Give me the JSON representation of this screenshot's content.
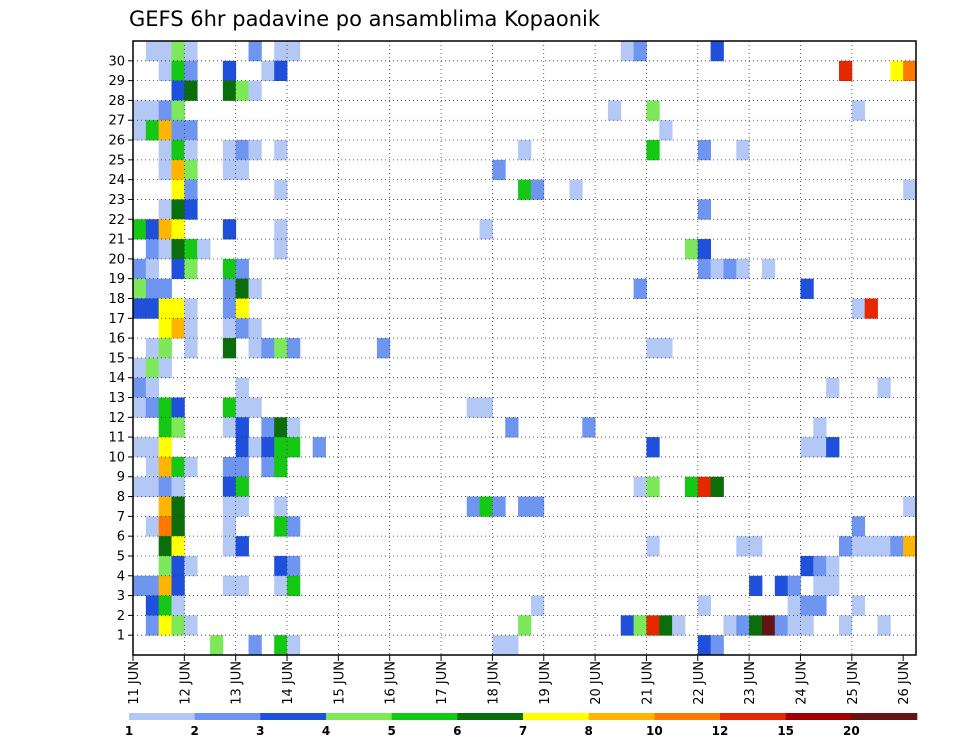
{
  "chart_data": {
    "type": "heatmap",
    "title": "GEFS 6hr padavine po ansamblima Kopaonik",
    "xlabel": "",
    "ylabel": "",
    "y_categories": [
      1,
      2,
      3,
      4,
      5,
      6,
      7,
      8,
      9,
      10,
      11,
      12,
      13,
      14,
      15,
      16,
      17,
      18,
      19,
      20,
      21,
      22,
      23,
      24,
      25,
      26,
      27,
      28,
      29,
      30
    ],
    "x_tick_labels": [
      "11 JUN",
      "12 JUN",
      "13 JUN",
      "14 JUN",
      "15 JUN",
      "16 JUN",
      "17 JUN",
      "18 JUN",
      "19 JUN",
      "20 JUN",
      "21 JUN",
      "22 JUN",
      "23 JUN",
      "24 JUN",
      "25 JUN",
      "26 JUN"
    ],
    "x_unit": "6-hour step",
    "x_steps": 61,
    "grid": true,
    "legend": "bottom",
    "colorbar": {
      "labels": [
        "1",
        "2",
        "3",
        "4",
        "5",
        "6",
        "7",
        "8",
        "10",
        "12",
        "15",
        "20"
      ],
      "colors": [
        "#b4c8f5",
        "#6e96f0",
        "#1e50dc",
        "#7de85a",
        "#14c814",
        "#0a6e0a",
        "#ffff00",
        "#ffb400",
        "#ff7800",
        "#e62800",
        "#a00000",
        "#641414"
      ]
    },
    "cells": [
      {
        "m": 30,
        "t": 1,
        "v": 1
      },
      {
        "m": 30,
        "t": 2,
        "v": 1
      },
      {
        "m": 30,
        "t": 3,
        "v": 4
      },
      {
        "m": 30,
        "t": 4,
        "v": 1
      },
      {
        "m": 30,
        "t": 9,
        "v": 2
      },
      {
        "m": 30,
        "t": 11,
        "v": 1
      },
      {
        "m": 30,
        "t": 12,
        "v": 1
      },
      {
        "m": 30,
        "t": 38,
        "v": 1
      },
      {
        "m": 30,
        "t": 39,
        "v": 2
      },
      {
        "m": 30,
        "t": 45,
        "v": 3
      },
      {
        "m": 29,
        "t": 2,
        "v": 1
      },
      {
        "m": 29,
        "t": 3,
        "v": 5
      },
      {
        "m": 29,
        "t": 4,
        "v": 2
      },
      {
        "m": 29,
        "t": 7,
        "v": 3
      },
      {
        "m": 29,
        "t": 10,
        "v": 1
      },
      {
        "m": 29,
        "t": 11,
        "v": 3
      },
      {
        "m": 29,
        "t": 55,
        "v": 10
      },
      {
        "m": 29,
        "t": 59,
        "v": 7
      },
      {
        "m": 29,
        "t": 60,
        "v": 9
      },
      {
        "m": 28,
        "t": 3,
        "v": 3
      },
      {
        "m": 28,
        "t": 4,
        "v": 6
      },
      {
        "m": 28,
        "t": 7,
        "v": 6
      },
      {
        "m": 28,
        "t": 8,
        "v": 4
      },
      {
        "m": 28,
        "t": 9,
        "v": 1
      },
      {
        "m": 27,
        "t": 0,
        "v": 1
      },
      {
        "m": 27,
        "t": 1,
        "v": 1
      },
      {
        "m": 27,
        "t": 2,
        "v": 2
      },
      {
        "m": 27,
        "t": 3,
        "v": 4
      },
      {
        "m": 27,
        "t": 37,
        "v": 1
      },
      {
        "m": 27,
        "t": 40,
        "v": 4
      },
      {
        "m": 27,
        "t": 56,
        "v": 1
      },
      {
        "m": 26,
        "t": 0,
        "v": 1
      },
      {
        "m": 26,
        "t": 1,
        "v": 5
      },
      {
        "m": 26,
        "t": 2,
        "v": 8
      },
      {
        "m": 26,
        "t": 3,
        "v": 2
      },
      {
        "m": 26,
        "t": 4,
        "v": 2
      },
      {
        "m": 26,
        "t": 41,
        "v": 1
      },
      {
        "m": 25,
        "t": 2,
        "v": 1
      },
      {
        "m": 25,
        "t": 3,
        "v": 5
      },
      {
        "m": 25,
        "t": 4,
        "v": 1
      },
      {
        "m": 25,
        "t": 7,
        "v": 1
      },
      {
        "m": 25,
        "t": 8,
        "v": 2
      },
      {
        "m": 25,
        "t": 9,
        "v": 1
      },
      {
        "m": 25,
        "t": 11,
        "v": 1
      },
      {
        "m": 25,
        "t": 30,
        "v": 1
      },
      {
        "m": 25,
        "t": 40,
        "v": 5
      },
      {
        "m": 25,
        "t": 44,
        "v": 2
      },
      {
        "m": 25,
        "t": 47,
        "v": 1
      },
      {
        "m": 24,
        "t": 2,
        "v": 1
      },
      {
        "m": 24,
        "t": 3,
        "v": 8
      },
      {
        "m": 24,
        "t": 4,
        "v": 4
      },
      {
        "m": 24,
        "t": 7,
        "v": 1
      },
      {
        "m": 24,
        "t": 8,
        "v": 1
      },
      {
        "m": 24,
        "t": 28,
        "v": 2
      },
      {
        "m": 23,
        "t": 3,
        "v": 7
      },
      {
        "m": 23,
        "t": 4,
        "v": 2
      },
      {
        "m": 23,
        "t": 11,
        "v": 1
      },
      {
        "m": 23,
        "t": 30,
        "v": 5
      },
      {
        "m": 23,
        "t": 31,
        "v": 2
      },
      {
        "m": 23,
        "t": 34,
        "v": 1
      },
      {
        "m": 23,
        "t": 60,
        "v": 1
      },
      {
        "m": 22,
        "t": 2,
        "v": 1
      },
      {
        "m": 22,
        "t": 3,
        "v": 6
      },
      {
        "m": 22,
        "t": 4,
        "v": 3
      },
      {
        "m": 22,
        "t": 44,
        "v": 2
      },
      {
        "m": 21,
        "t": 0,
        "v": 5
      },
      {
        "m": 21,
        "t": 1,
        "v": 3
      },
      {
        "m": 21,
        "t": 2,
        "v": 8
      },
      {
        "m": 21,
        "t": 3,
        "v": 7
      },
      {
        "m": 21,
        "t": 7,
        "v": 3
      },
      {
        "m": 21,
        "t": 11,
        "v": 1
      },
      {
        "m": 21,
        "t": 27,
        "v": 1
      },
      {
        "m": 20,
        "t": 1,
        "v": 2
      },
      {
        "m": 20,
        "t": 2,
        "v": 1
      },
      {
        "m": 20,
        "t": 3,
        "v": 6
      },
      {
        "m": 20,
        "t": 4,
        "v": 5
      },
      {
        "m": 20,
        "t": 5,
        "v": 1
      },
      {
        "m": 20,
        "t": 11,
        "v": 1
      },
      {
        "m": 20,
        "t": 43,
        "v": 4
      },
      {
        "m": 20,
        "t": 44,
        "v": 3
      },
      {
        "m": 19,
        "t": 0,
        "v": 2
      },
      {
        "m": 19,
        "t": 1,
        "v": 1
      },
      {
        "m": 19,
        "t": 3,
        "v": 3
      },
      {
        "m": 19,
        "t": 4,
        "v": 4
      },
      {
        "m": 19,
        "t": 7,
        "v": 5
      },
      {
        "m": 19,
        "t": 8,
        "v": 2
      },
      {
        "m": 19,
        "t": 44,
        "v": 2
      },
      {
        "m": 19,
        "t": 45,
        "v": 1
      },
      {
        "m": 19,
        "t": 46,
        "v": 2
      },
      {
        "m": 19,
        "t": 47,
        "v": 1
      },
      {
        "m": 19,
        "t": 49,
        "v": 1
      },
      {
        "m": 18,
        "t": 0,
        "v": 4
      },
      {
        "m": 18,
        "t": 1,
        "v": 2
      },
      {
        "m": 18,
        "t": 2,
        "v": 2
      },
      {
        "m": 18,
        "t": 7,
        "v": 2
      },
      {
        "m": 18,
        "t": 8,
        "v": 6
      },
      {
        "m": 18,
        "t": 9,
        "v": 1
      },
      {
        "m": 18,
        "t": 39,
        "v": 2
      },
      {
        "m": 18,
        "t": 52,
        "v": 3
      },
      {
        "m": 17,
        "t": 0,
        "v": 3
      },
      {
        "m": 17,
        "t": 1,
        "v": 3
      },
      {
        "m": 17,
        "t": 2,
        "v": 7
      },
      {
        "m": 17,
        "t": 3,
        "v": 7
      },
      {
        "m": 17,
        "t": 4,
        "v": 1
      },
      {
        "m": 17,
        "t": 7,
        "v": 2
      },
      {
        "m": 17,
        "t": 8,
        "v": 7
      },
      {
        "m": 17,
        "t": 56,
        "v": 1
      },
      {
        "m": 17,
        "t": 57,
        "v": 10
      },
      {
        "m": 16,
        "t": 2,
        "v": 7
      },
      {
        "m": 16,
        "t": 3,
        "v": 8
      },
      {
        "m": 16,
        "t": 4,
        "v": 1
      },
      {
        "m": 16,
        "t": 7,
        "v": 1
      },
      {
        "m": 16,
        "t": 8,
        "v": 2
      },
      {
        "m": 16,
        "t": 9,
        "v": 1
      },
      {
        "m": 15,
        "t": 1,
        "v": 1
      },
      {
        "m": 15,
        "t": 2,
        "v": 4
      },
      {
        "m": 15,
        "t": 4,
        "v": 1
      },
      {
        "m": 15,
        "t": 7,
        "v": 6
      },
      {
        "m": 15,
        "t": 9,
        "v": 1
      },
      {
        "m": 15,
        "t": 10,
        "v": 2
      },
      {
        "m": 15,
        "t": 11,
        "v": 4
      },
      {
        "m": 15,
        "t": 12,
        "v": 2
      },
      {
        "m": 15,
        "t": 19,
        "v": 2
      },
      {
        "m": 15,
        "t": 40,
        "v": 1
      },
      {
        "m": 15,
        "t": 41,
        "v": 1
      },
      {
        "m": 14,
        "t": 0,
        "v": 1
      },
      {
        "m": 14,
        "t": 1,
        "v": 4
      },
      {
        "m": 14,
        "t": 2,
        "v": 1
      },
      {
        "m": 13,
        "t": 0,
        "v": 2
      },
      {
        "m": 13,
        "t": 1,
        "v": 1
      },
      {
        "m": 13,
        "t": 8,
        "v": 1
      },
      {
        "m": 13,
        "t": 54,
        "v": 1
      },
      {
        "m": 13,
        "t": 58,
        "v": 1
      },
      {
        "m": 12,
        "t": 0,
        "v": 1
      },
      {
        "m": 12,
        "t": 1,
        "v": 2
      },
      {
        "m": 12,
        "t": 2,
        "v": 5
      },
      {
        "m": 12,
        "t": 3,
        "v": 3
      },
      {
        "m": 12,
        "t": 7,
        "v": 5
      },
      {
        "m": 12,
        "t": 8,
        "v": 1
      },
      {
        "m": 12,
        "t": 9,
        "v": 1
      },
      {
        "m": 12,
        "t": 26,
        "v": 1
      },
      {
        "m": 12,
        "t": 27,
        "v": 1
      },
      {
        "m": 11,
        "t": 2,
        "v": 5
      },
      {
        "m": 11,
        "t": 3,
        "v": 4
      },
      {
        "m": 11,
        "t": 7,
        "v": 1
      },
      {
        "m": 11,
        "t": 8,
        "v": 3
      },
      {
        "m": 11,
        "t": 10,
        "v": 2
      },
      {
        "m": 11,
        "t": 11,
        "v": 6
      },
      {
        "m": 11,
        "t": 12,
        "v": 1
      },
      {
        "m": 11,
        "t": 29,
        "v": 2
      },
      {
        "m": 11,
        "t": 35,
        "v": 2
      },
      {
        "m": 11,
        "t": 53,
        "v": 1
      },
      {
        "m": 10,
        "t": 0,
        "v": 1
      },
      {
        "m": 10,
        "t": 1,
        "v": 1
      },
      {
        "m": 10,
        "t": 2,
        "v": 7
      },
      {
        "m": 10,
        "t": 8,
        "v": 3
      },
      {
        "m": 10,
        "t": 9,
        "v": 1
      },
      {
        "m": 10,
        "t": 10,
        "v": 3
      },
      {
        "m": 10,
        "t": 11,
        "v": 5
      },
      {
        "m": 10,
        "t": 12,
        "v": 5
      },
      {
        "m": 10,
        "t": 14,
        "v": 2
      },
      {
        "m": 10,
        "t": 40,
        "v": 3
      },
      {
        "m": 10,
        "t": 52,
        "v": 1
      },
      {
        "m": 10,
        "t": 53,
        "v": 1
      },
      {
        "m": 10,
        "t": 54,
        "v": 3
      },
      {
        "m": 9,
        "t": 1,
        "v": 1
      },
      {
        "m": 9,
        "t": 2,
        "v": 8
      },
      {
        "m": 9,
        "t": 3,
        "v": 5
      },
      {
        "m": 9,
        "t": 4,
        "v": 1
      },
      {
        "m": 9,
        "t": 7,
        "v": 2
      },
      {
        "m": 9,
        "t": 8,
        "v": 2
      },
      {
        "m": 9,
        "t": 10,
        "v": 2
      },
      {
        "m": 9,
        "t": 11,
        "v": 5
      },
      {
        "m": 8,
        "t": 0,
        "v": 1
      },
      {
        "m": 8,
        "t": 1,
        "v": 1
      },
      {
        "m": 8,
        "t": 2,
        "v": 2
      },
      {
        "m": 8,
        "t": 3,
        "v": 1
      },
      {
        "m": 8,
        "t": 7,
        "v": 3
      },
      {
        "m": 8,
        "t": 8,
        "v": 5
      },
      {
        "m": 8,
        "t": 39,
        "v": 1
      },
      {
        "m": 8,
        "t": 40,
        "v": 4
      },
      {
        "m": 8,
        "t": 43,
        "v": 5
      },
      {
        "m": 8,
        "t": 44,
        "v": 10
      },
      {
        "m": 8,
        "t": 45,
        "v": 6
      },
      {
        "m": 7,
        "t": 2,
        "v": 8
      },
      {
        "m": 7,
        "t": 3,
        "v": 6
      },
      {
        "m": 7,
        "t": 7,
        "v": 1
      },
      {
        "m": 7,
        "t": 8,
        "v": 1
      },
      {
        "m": 7,
        "t": 11,
        "v": 1
      },
      {
        "m": 7,
        "t": 26,
        "v": 2
      },
      {
        "m": 7,
        "t": 27,
        "v": 5
      },
      {
        "m": 7,
        "t": 28,
        "v": 2
      },
      {
        "m": 7,
        "t": 30,
        "v": 2
      },
      {
        "m": 7,
        "t": 31,
        "v": 2
      },
      {
        "m": 7,
        "t": 60,
        "v": 1
      },
      {
        "m": 6,
        "t": 1,
        "v": 1
      },
      {
        "m": 6,
        "t": 2,
        "v": 9
      },
      {
        "m": 6,
        "t": 3,
        "v": 6
      },
      {
        "m": 6,
        "t": 7,
        "v": 1
      },
      {
        "m": 6,
        "t": 11,
        "v": 5
      },
      {
        "m": 6,
        "t": 12,
        "v": 2
      },
      {
        "m": 6,
        "t": 56,
        "v": 2
      },
      {
        "m": 5,
        "t": 2,
        "v": 6
      },
      {
        "m": 5,
        "t": 3,
        "v": 7
      },
      {
        "m": 5,
        "t": 7,
        "v": 1
      },
      {
        "m": 5,
        "t": 8,
        "v": 3
      },
      {
        "m": 5,
        "t": 40,
        "v": 1
      },
      {
        "m": 5,
        "t": 47,
        "v": 1
      },
      {
        "m": 5,
        "t": 48,
        "v": 1
      },
      {
        "m": 5,
        "t": 55,
        "v": 2
      },
      {
        "m": 5,
        "t": 56,
        "v": 1
      },
      {
        "m": 5,
        "t": 57,
        "v": 1
      },
      {
        "m": 5,
        "t": 58,
        "v": 1
      },
      {
        "m": 5,
        "t": 59,
        "v": 2
      },
      {
        "m": 5,
        "t": 60,
        "v": 8
      },
      {
        "m": 4,
        "t": 2,
        "v": 4
      },
      {
        "m": 4,
        "t": 3,
        "v": 3
      },
      {
        "m": 4,
        "t": 4,
        "v": 1
      },
      {
        "m": 4,
        "t": 11,
        "v": 3
      },
      {
        "m": 4,
        "t": 12,
        "v": 2
      },
      {
        "m": 4,
        "t": 52,
        "v": 3
      },
      {
        "m": 4,
        "t": 53,
        "v": 2
      },
      {
        "m": 4,
        "t": 54,
        "v": 1
      },
      {
        "m": 3,
        "t": 0,
        "v": 2
      },
      {
        "m": 3,
        "t": 1,
        "v": 2
      },
      {
        "m": 3,
        "t": 2,
        "v": 8
      },
      {
        "m": 3,
        "t": 3,
        "v": 3
      },
      {
        "m": 3,
        "t": 7,
        "v": 1
      },
      {
        "m": 3,
        "t": 8,
        "v": 1
      },
      {
        "m": 3,
        "t": 11,
        "v": 1
      },
      {
        "m": 3,
        "t": 12,
        "v": 5
      },
      {
        "m": 3,
        "t": 48,
        "v": 3
      },
      {
        "m": 3,
        "t": 50,
        "v": 3
      },
      {
        "m": 3,
        "t": 51,
        "v": 2
      },
      {
        "m": 3,
        "t": 53,
        "v": 1
      },
      {
        "m": 3,
        "t": 54,
        "v": 1
      },
      {
        "m": 2,
        "t": 1,
        "v": 3
      },
      {
        "m": 2,
        "t": 2,
        "v": 5
      },
      {
        "m": 2,
        "t": 3,
        "v": 1
      },
      {
        "m": 2,
        "t": 31,
        "v": 1
      },
      {
        "m": 2,
        "t": 44,
        "v": 1
      },
      {
        "m": 2,
        "t": 51,
        "v": 1
      },
      {
        "m": 2,
        "t": 52,
        "v": 2
      },
      {
        "m": 2,
        "t": 53,
        "v": 2
      },
      {
        "m": 2,
        "t": 56,
        "v": 1
      },
      {
        "m": 1,
        "t": 1,
        "v": 2
      },
      {
        "m": 1,
        "t": 2,
        "v": 7
      },
      {
        "m": 1,
        "t": 3,
        "v": 4
      },
      {
        "m": 1,
        "t": 4,
        "v": 1
      },
      {
        "m": 1,
        "t": 30,
        "v": 4
      },
      {
        "m": 1,
        "t": 38,
        "v": 3
      },
      {
        "m": 1,
        "t": 39,
        "v": 4
      },
      {
        "m": 1,
        "t": 40,
        "v": 10
      },
      {
        "m": 1,
        "t": 41,
        "v": 6
      },
      {
        "m": 1,
        "t": 42,
        "v": 1
      },
      {
        "m": 1,
        "t": 46,
        "v": 1
      },
      {
        "m": 1,
        "t": 47,
        "v": 2
      },
      {
        "m": 1,
        "t": 48,
        "v": 6
      },
      {
        "m": 1,
        "t": 49,
        "v": 12
      },
      {
        "m": 1,
        "t": 50,
        "v": 2
      },
      {
        "m": 1,
        "t": 51,
        "v": 1
      },
      {
        "m": 1,
        "t": 52,
        "v": 1
      },
      {
        "m": 1,
        "t": 55,
        "v": 1
      },
      {
        "m": 1,
        "t": 58,
        "v": 1
      },
      {
        "m": 0,
        "t": 6,
        "v": 4
      },
      {
        "m": 0,
        "t": 9,
        "v": 2
      },
      {
        "m": 0,
        "t": 11,
        "v": 5
      },
      {
        "m": 0,
        "t": 12,
        "v": 1
      },
      {
        "m": 0,
        "t": 28,
        "v": 1
      },
      {
        "m": 0,
        "t": 29,
        "v": 1
      },
      {
        "m": 0,
        "t": 44,
        "v": 3
      },
      {
        "m": 0,
        "t": 45,
        "v": 2
      }
    ]
  }
}
